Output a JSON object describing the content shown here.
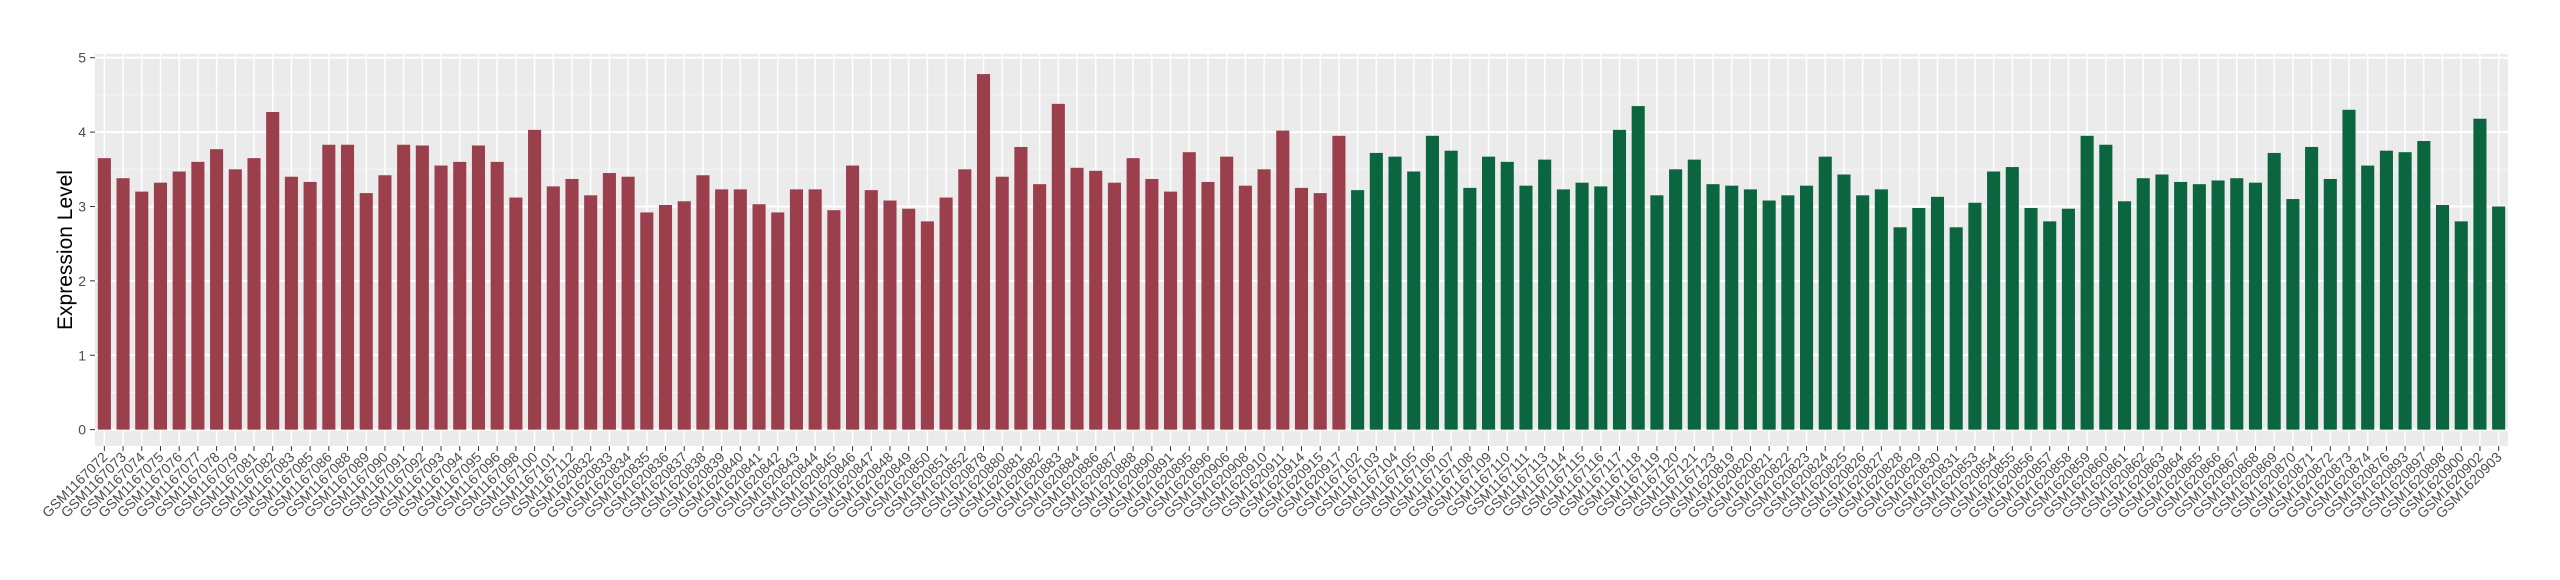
{
  "chart_data": {
    "type": "bar",
    "y_label": "Expression Level",
    "categories": [
      "GSM1167072",
      "GSM1167073",
      "GSM1167074",
      "GSM1167075",
      "GSM1167076",
      "GSM1167077",
      "GSM1167078",
      "GSM1167079",
      "GSM1167081",
      "GSM1167082",
      "GSM1167083",
      "GSM1167085",
      "GSM1167086",
      "GSM1167088",
      "GSM1167089",
      "GSM1167090",
      "GSM1167091",
      "GSM1167092",
      "GSM1167093",
      "GSM1167094",
      "GSM1167095",
      "GSM1167096",
      "GSM1167098",
      "GSM1167100",
      "GSM1167101",
      "GSM1167112",
      "GSM1620832",
      "GSM1620833",
      "GSM1620834",
      "GSM1620835",
      "GSM1620836",
      "GSM1620837",
      "GSM1620838",
      "GSM1620839",
      "GSM1620840",
      "GSM1620841",
      "GSM1620842",
      "GSM1620843",
      "GSM1620844",
      "GSM1620845",
      "GSM1620846",
      "GSM1620847",
      "GSM1620848",
      "GSM1620849",
      "GSM1620850",
      "GSM1620851",
      "GSM1620852",
      "GSM1620878",
      "GSM1620880",
      "GSM1620881",
      "GSM1620882",
      "GSM1620883",
      "GSM1620884",
      "GSM1620886",
      "GSM1620887",
      "GSM1620888",
      "GSM1620890",
      "GSM1620891",
      "GSM1620895",
      "GSM1620896",
      "GSM1620906",
      "GSM1620908",
      "GSM1620910",
      "GSM1620911",
      "GSM1620914",
      "GSM1620915",
      "GSM1620917",
      "GSM1167102",
      "GSM1167103",
      "GSM1167104",
      "GSM1167105",
      "GSM1167106",
      "GSM1167107",
      "GSM1167108",
      "GSM1167109",
      "GSM1167110",
      "GSM1167111",
      "GSM1167113",
      "GSM1167114",
      "GSM1167115",
      "GSM1167116",
      "GSM1167117",
      "GSM1167118",
      "GSM1167119",
      "GSM1167120",
      "GSM1167121",
      "GSM1167123",
      "GSM1620819",
      "GSM1620820",
      "GSM1620821",
      "GSM1620822",
      "GSM1620823",
      "GSM1620824",
      "GSM1620825",
      "GSM1620826",
      "GSM1620827",
      "GSM1620828",
      "GSM1620829",
      "GSM1620830",
      "GSM1620831",
      "GSM1620853",
      "GSM1620854",
      "GSM1620855",
      "GSM1620856",
      "GSM1620857",
      "GSM1620858",
      "GSM1620859",
      "GSM1620860",
      "GSM1620861",
      "GSM1620862",
      "GSM1620863",
      "GSM1620864",
      "GSM1620865",
      "GSM1620866",
      "GSM1620867",
      "GSM1620868",
      "GSM1620869",
      "GSM1620870",
      "GSM1620871",
      "GSM1620872",
      "GSM1620873",
      "GSM1620874",
      "GSM1620876",
      "GSM1620893",
      "GSM1620897",
      "GSM1620898",
      "GSM1620900",
      "GSM1620902",
      "GSM1620903"
    ],
    "values": [
      3.65,
      3.38,
      3.2,
      3.32,
      3.47,
      3.6,
      3.77,
      3.5,
      3.65,
      4.27,
      3.4,
      3.33,
      3.83,
      3.83,
      3.18,
      3.42,
      3.83,
      3.82,
      3.55,
      3.6,
      3.82,
      3.6,
      3.12,
      4.03,
      3.27,
      3.37,
      3.15,
      3.45,
      3.4,
      2.92,
      3.02,
      3.07,
      3.42,
      3.23,
      3.23,
      3.03,
      2.92,
      3.23,
      3.23,
      2.95,
      3.55,
      3.22,
      3.08,
      2.97,
      2.8,
      3.12,
      3.5,
      4.78,
      3.4,
      3.8,
      3.3,
      4.38,
      3.52,
      3.48,
      3.32,
      3.65,
      3.37,
      3.2,
      3.73,
      3.33,
      3.67,
      3.28,
      3.5,
      4.02,
      3.25,
      3.18,
      3.95,
      3.22,
      3.72,
      3.67,
      3.47,
      3.95,
      3.75,
      3.25,
      3.67,
      3.6,
      3.28,
      3.63,
      3.23,
      3.32,
      3.27,
      4.03,
      4.35,
      3.15,
      3.5,
      3.63,
      3.3,
      3.28,
      3.23,
      3.08,
      3.15,
      3.28,
      3.67,
      3.43,
      3.15,
      3.23,
      2.72,
      2.98,
      3.13,
      2.72,
      3.05,
      3.47,
      3.53,
      2.98,
      2.8,
      2.97,
      3.95,
      3.83,
      3.07,
      3.38,
      3.43,
      3.33,
      3.3,
      3.35,
      3.38,
      3.32,
      3.72,
      3.1,
      3.8,
      3.37,
      4.3,
      3.55,
      3.75,
      3.73,
      3.88,
      3.02,
      2.8,
      4.18,
      3.0
    ],
    "colors": [
      "#9b3f4d",
      "#9b3f4d",
      "#9b3f4d",
      "#9b3f4d",
      "#9b3f4d",
      "#9b3f4d",
      "#9b3f4d",
      "#9b3f4d",
      "#9b3f4d",
      "#9b3f4d",
      "#9b3f4d",
      "#9b3f4d",
      "#9b3f4d",
      "#9b3f4d",
      "#9b3f4d",
      "#9b3f4d",
      "#9b3f4d",
      "#9b3f4d",
      "#9b3f4d",
      "#9b3f4d",
      "#9b3f4d",
      "#9b3f4d",
      "#9b3f4d",
      "#9b3f4d",
      "#9b3f4d",
      "#9b3f4d",
      "#9b3f4d",
      "#9b3f4d",
      "#9b3f4d",
      "#9b3f4d",
      "#9b3f4d",
      "#9b3f4d",
      "#9b3f4d",
      "#9b3f4d",
      "#9b3f4d",
      "#9b3f4d",
      "#9b3f4d",
      "#9b3f4d",
      "#9b3f4d",
      "#9b3f4d",
      "#9b3f4d",
      "#9b3f4d",
      "#9b3f4d",
      "#9b3f4d",
      "#9b3f4d",
      "#9b3f4d",
      "#9b3f4d",
      "#9b3f4d",
      "#9b3f4d",
      "#9b3f4d",
      "#9b3f4d",
      "#9b3f4d",
      "#9b3f4d",
      "#9b3f4d",
      "#9b3f4d",
      "#9b3f4d",
      "#9b3f4d",
      "#9b3f4d",
      "#9b3f4d",
      "#9b3f4d",
      "#9b3f4d",
      "#9b3f4d",
      "#9b3f4d",
      "#9b3f4d",
      "#9b3f4d",
      "#9b3f4d",
      "#9b3f4d",
      "#0b6640",
      "#0b6640",
      "#0b6640",
      "#0b6640",
      "#0b6640",
      "#0b6640",
      "#0b6640",
      "#0b6640",
      "#0b6640",
      "#0b6640",
      "#0b6640",
      "#0b6640",
      "#0b6640",
      "#0b6640",
      "#0b6640",
      "#0b6640",
      "#0b6640",
      "#0b6640",
      "#0b6640",
      "#0b6640",
      "#0b6640",
      "#0b6640",
      "#0b6640",
      "#0b6640",
      "#0b6640",
      "#0b6640",
      "#0b6640",
      "#0b6640",
      "#0b6640",
      "#0b6640",
      "#0b6640",
      "#0b6640",
      "#0b6640",
      "#0b6640",
      "#0b6640",
      "#0b6640",
      "#0b6640",
      "#0b6640",
      "#0b6640",
      "#0b6640",
      "#0b6640",
      "#0b6640",
      "#0b6640",
      "#0b6640",
      "#0b6640",
      "#0b6640",
      "#0b6640",
      "#0b6640",
      "#0b6640",
      "#0b6640",
      "#0b6640",
      "#0b6640",
      "#0b6640",
      "#0b6640",
      "#0b6640",
      "#0b6640",
      "#0b6640",
      "#0b6640",
      "#0b6640",
      "#0b6640",
      "#0b6640",
      "#0b6640"
    ],
    "ylim": [
      -0.22,
      5.05
    ],
    "yticks": [
      0,
      1,
      2,
      3,
      4,
      5
    ],
    "grid": true
  }
}
